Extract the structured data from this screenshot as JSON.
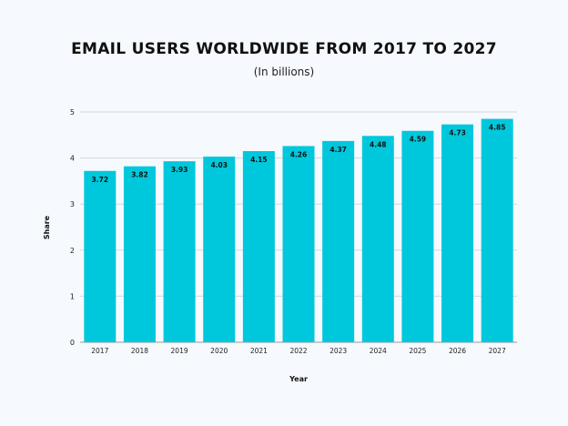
{
  "chart_data": {
    "type": "bar",
    "title": "EMAIL USERS WORLDWIDE FROM 2017 TO 2027",
    "subtitle": "(In billions)",
    "xlabel": "Year",
    "ylabel": "Share",
    "categories": [
      "2017",
      "2018",
      "2019",
      "2020",
      "2021",
      "2022",
      "2023",
      "2024",
      "2025",
      "2026",
      "2027"
    ],
    "values": [
      3.72,
      3.82,
      3.93,
      4.03,
      4.15,
      4.26,
      4.37,
      4.48,
      4.59,
      4.73,
      4.85
    ],
    "ylim": [
      0,
      5
    ],
    "yticks": [
      0,
      1,
      2,
      3,
      4,
      5
    ],
    "grid": true,
    "bar_color": "#00c8dc",
    "legend": "none"
  }
}
